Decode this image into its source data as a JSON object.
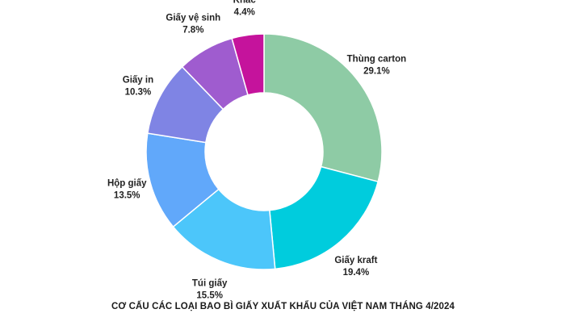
{
  "chart_data": {
    "type": "pie",
    "variant": "donut",
    "title": "CƠ CẤU CÁC LOẠI BAO BÌ GIẤY XUẤT KHẨU CỦA VIỆT NAM THÁNG 4/2024",
    "slices": [
      {
        "label": "Thùng carton",
        "value": 29.1,
        "value_label": "29.1%",
        "color": "#8ECBA5"
      },
      {
        "label": "Giấy kraft",
        "value": 19.4,
        "value_label": "19.4%",
        "color": "#00CCDD"
      },
      {
        "label": "Túi giấy",
        "value": 15.5,
        "value_label": "15.5%",
        "color": "#4CC6FA"
      },
      {
        "label": "Hộp giấy",
        "value": 13.5,
        "value_label": "13.5%",
        "color": "#61A8FA"
      },
      {
        "label": "Giấy in",
        "value": 10.3,
        "value_label": "10.3%",
        "color": "#7F84E4"
      },
      {
        "label": "Giấy vệ sinh",
        "value": 7.8,
        "value_label": "7.8%",
        "color": "#9F5CCF"
      },
      {
        "label": "Khác",
        "value": 4.4,
        "value_label": "4.4%",
        "color": "#C5139C"
      }
    ],
    "start": "top",
    "direction": "clockwise",
    "legend": "none"
  }
}
